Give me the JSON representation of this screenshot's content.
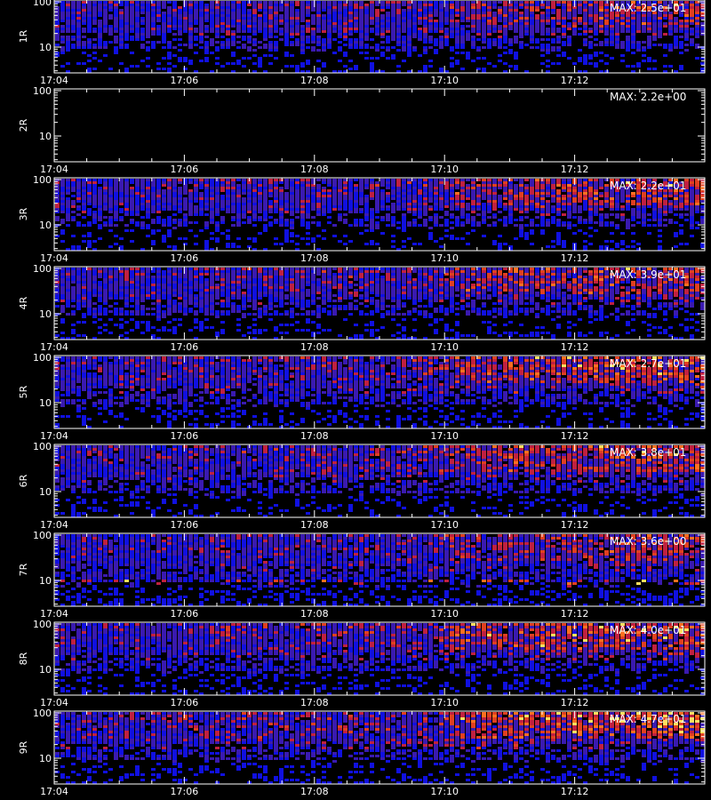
{
  "chart_data": {
    "type": "heatmap",
    "x_range": [
      "17:04",
      "17:14"
    ],
    "x_ticks": [
      "17:04",
      "17:06",
      "17:08",
      "17:10",
      "17:12"
    ],
    "y_scale": "log",
    "y_ticks": [
      10,
      100
    ],
    "y_tick_labels": [
      "10",
      "100"
    ],
    "panels": [
      {
        "label": "1R",
        "max_text": "MAX: 2.5e+01",
        "has_data": true,
        "activity": 0.75,
        "low_band": 0.25,
        "spike_band": 0.0
      },
      {
        "label": "2R",
        "max_text": "MAX: 2.2e+00",
        "has_data": false,
        "activity": 0.0,
        "low_band": 0.0,
        "spike_band": 0.0
      },
      {
        "label": "3R",
        "max_text": "MAX: 2.2e+01",
        "has_data": true,
        "activity": 0.85,
        "low_band": 0.2,
        "spike_band": 0.0
      },
      {
        "label": "4R",
        "max_text": "MAX: 3.9e+01",
        "has_data": true,
        "activity": 0.85,
        "low_band": 0.25,
        "spike_band": 0.0
      },
      {
        "label": "5R",
        "max_text": "MAX: 2.7e+01",
        "has_data": true,
        "activity": 0.95,
        "low_band": 0.35,
        "spike_band": 0.0
      },
      {
        "label": "6R",
        "max_text": "MAX: 3.8e+01",
        "has_data": true,
        "activity": 0.9,
        "low_band": 0.2,
        "spike_band": 0.0
      },
      {
        "label": "7R",
        "max_text": "MAX: 3.6e+00",
        "has_data": true,
        "activity": 0.7,
        "low_band": 0.55,
        "spike_band": 1.0
      },
      {
        "label": "8R",
        "max_text": "MAX: 4.0e+01",
        "has_data": true,
        "activity": 1.0,
        "low_band": 0.3,
        "spike_band": 0.0
      },
      {
        "label": "9R",
        "max_text": "MAX: 4.7e+01",
        "has_data": true,
        "activity": 1.1,
        "low_band": 0.3,
        "spike_band": 0.0
      }
    ],
    "colors": {
      "background": "#000000",
      "axis": "#ffffff",
      "low": "#1010e0",
      "mid": "#c02040",
      "high": "#ff7020",
      "peak": "#ffe060"
    }
  }
}
